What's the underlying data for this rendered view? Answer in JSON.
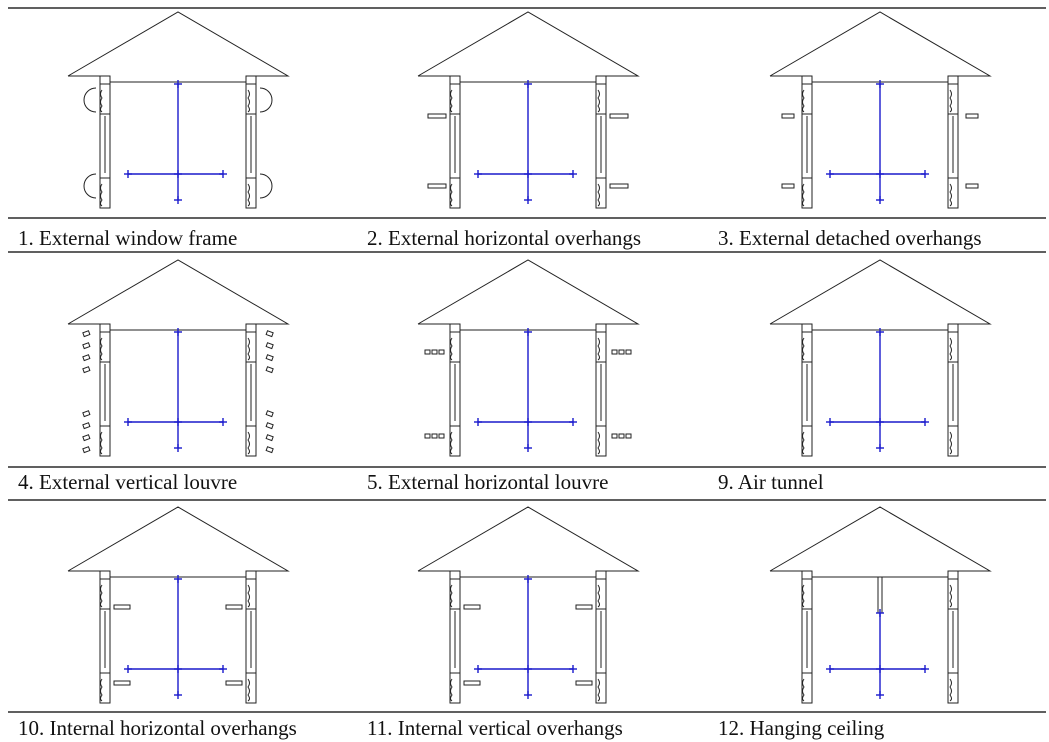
{
  "rows": [
    [
      "1. External window frame",
      "2. External horizontal overhangs",
      "3. External detached overhangs"
    ],
    [
      "4. External vertical louvre",
      "5. External horizontal louvre",
      "9. Air tunnel"
    ],
    [
      "10. Internal horizontal overhangs",
      "11. Internal vertical overhangs",
      "12. Hanging ceiling"
    ]
  ]
}
